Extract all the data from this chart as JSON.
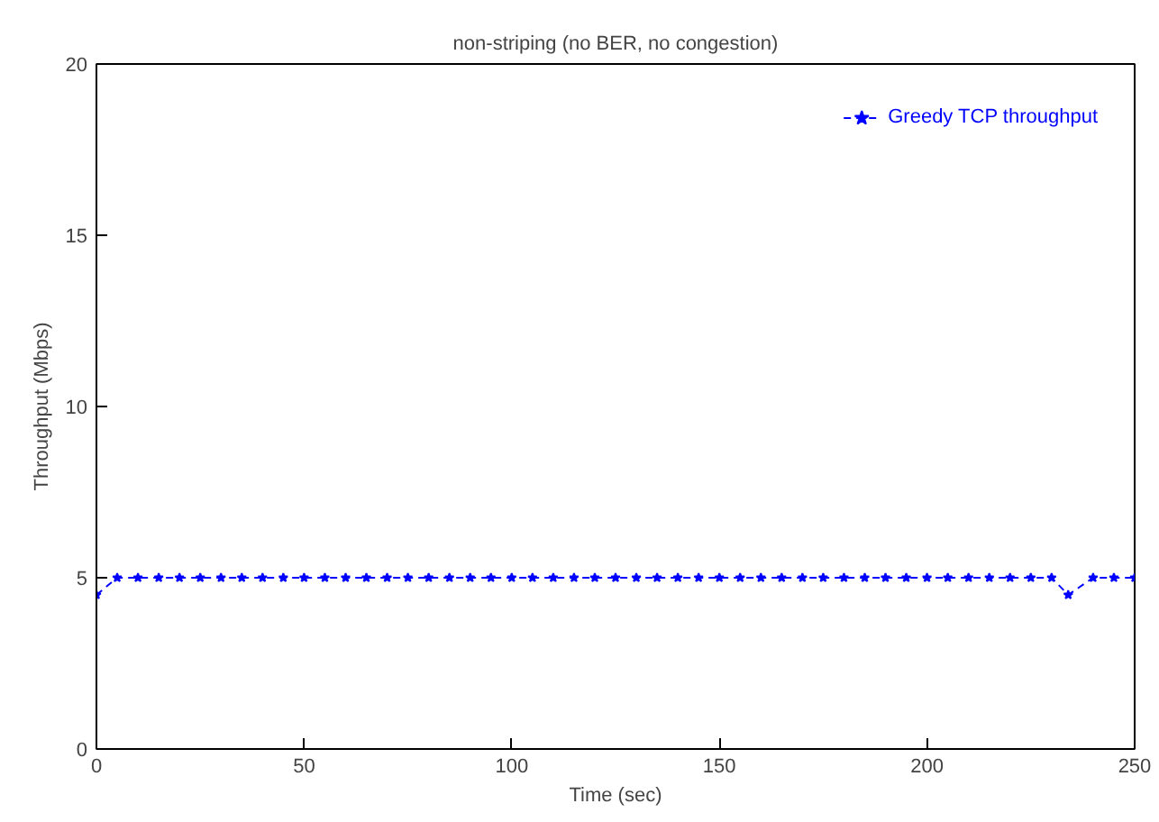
{
  "chart_data": {
    "type": "line",
    "title": "non-striping (no BER, no congestion)",
    "xlabel": "Time (sec)",
    "ylabel": "Throughput (Mbps)",
    "xlim": [
      0,
      250
    ],
    "ylim": [
      0,
      20
    ],
    "xticks": [
      0,
      50,
      100,
      150,
      200,
      250
    ],
    "yticks": [
      0,
      5,
      10,
      15,
      20
    ],
    "grid": false,
    "legend": "top right",
    "marker": "star",
    "line_style": "dashed",
    "x": [
      0,
      5,
      10,
      15,
      20,
      25,
      30,
      35,
      40,
      45,
      50,
      55,
      60,
      65,
      70,
      75,
      80,
      85,
      90,
      95,
      100,
      105,
      110,
      115,
      120,
      125,
      130,
      135,
      140,
      145,
      150,
      155,
      160,
      165,
      170,
      175,
      180,
      185,
      190,
      195,
      200,
      205,
      210,
      215,
      220,
      225,
      230,
      234,
      240,
      245,
      250
    ],
    "series": [
      {
        "name": "Greedy TCP throughput",
        "color": "#0000ff",
        "values": [
          4.5,
          5,
          5,
          5,
          5,
          5,
          5,
          5,
          5,
          5,
          5,
          5,
          5,
          5,
          5,
          5,
          5,
          5,
          5,
          5,
          5,
          5,
          5,
          5,
          5,
          5,
          5,
          5,
          5,
          5,
          5,
          5,
          5,
          5,
          5,
          5,
          5,
          5,
          5,
          5,
          5,
          5,
          5,
          5,
          5,
          5,
          5,
          4.5,
          5,
          5,
          5
        ]
      }
    ]
  }
}
